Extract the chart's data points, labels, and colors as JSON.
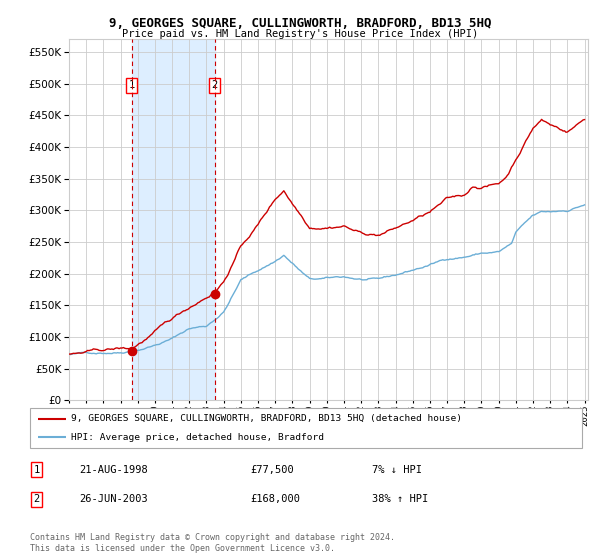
{
  "title": "9, GEORGES SQUARE, CULLINGWORTH, BRADFORD, BD13 5HQ",
  "subtitle": "Price paid vs. HM Land Registry's House Price Index (HPI)",
  "legend_line1": "9, GEORGES SQUARE, CULLINGWORTH, BRADFORD, BD13 5HQ (detached house)",
  "legend_line2": "HPI: Average price, detached house, Bradford",
  "sale1_date": "21-AUG-1998",
  "sale1_price": 77500,
  "sale1_label": "7% ↓ HPI",
  "sale2_date": "26-JUN-2003",
  "sale2_price": 168000,
  "sale2_label": "38% ↑ HPI",
  "footnote": "Contains HM Land Registry data © Crown copyright and database right 2024.\nThis data is licensed under the Open Government Licence v3.0.",
  "hpi_color": "#6baed6",
  "price_color": "#cc0000",
  "marker_color": "#cc0000",
  "shade_color": "#ddeeff",
  "grid_color": "#cccccc",
  "background_color": "#ffffff",
  "ylim": [
    0,
    570000
  ],
  "yticks": [
    0,
    50000,
    100000,
    150000,
    200000,
    250000,
    300000,
    350000,
    400000,
    450000,
    500000,
    550000
  ],
  "sale1_x": 1998.65,
  "sale2_x": 2003.48,
  "hpi_anchors_x": [
    1995,
    1996,
    1997,
    1998,
    1999,
    2000,
    2001,
    2002,
    2003,
    2004,
    2005,
    2006,
    2007,
    2007.5,
    2008,
    2009,
    2010,
    2011,
    2012,
    2013,
    2014,
    2015,
    2016,
    2017,
    2018,
    2019,
    2020,
    2020.75,
    2021,
    2021.5,
    2022,
    2022.5,
    2023,
    2024,
    2025
  ],
  "hpi_anchors_y": [
    72000,
    74000,
    76000,
    78000,
    84000,
    92000,
    102000,
    118000,
    122000,
    145000,
    195000,
    210000,
    225000,
    235000,
    222000,
    196000,
    196000,
    198000,
    194000,
    192000,
    198000,
    206000,
    214000,
    224000,
    228000,
    234000,
    236000,
    248000,
    265000,
    278000,
    290000,
    295000,
    295000,
    298000,
    308000
  ],
  "price_anchors_x": [
    1995,
    1996,
    1997,
    1998,
    1998.65,
    2003.48,
    2004,
    2005,
    2006,
    2007,
    2007.5,
    2008,
    2009,
    2010,
    2011,
    2012,
    2013,
    2014,
    2015,
    2016,
    2017,
    2018,
    2018.5,
    2019,
    2020,
    2020.5,
    2021,
    2021.5,
    2022,
    2022.5,
    2023,
    2023.5,
    2024,
    2024.5,
    2025
  ],
  "price_anchors_y": [
    72000,
    74000,
    76000,
    78000,
    77500,
    168000,
    185000,
    240000,
    275000,
    315000,
    330000,
    310000,
    275000,
    278000,
    282000,
    270000,
    268000,
    278000,
    290000,
    302000,
    320000,
    325000,
    340000,
    340000,
    345000,
    358000,
    385000,
    410000,
    435000,
    448000,
    440000,
    435000,
    430000,
    440000,
    450000
  ]
}
